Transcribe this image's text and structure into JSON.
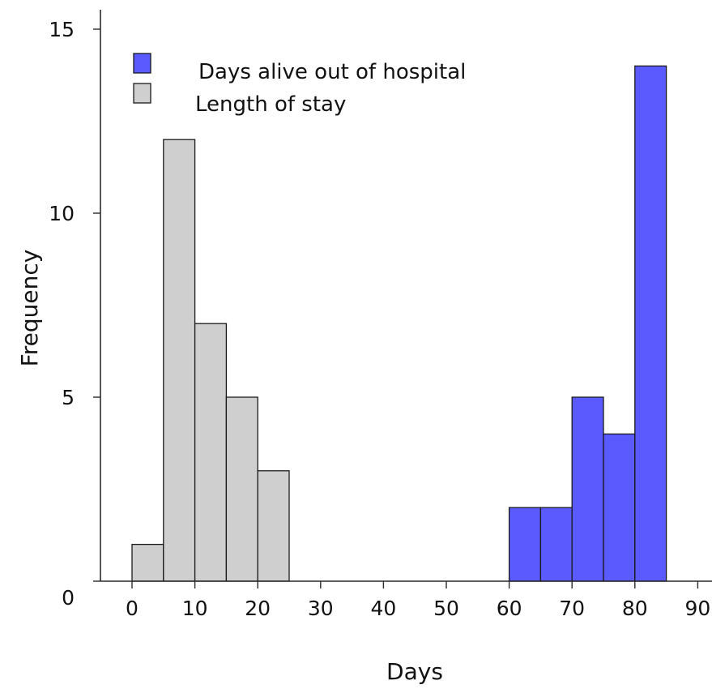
{
  "chart_data": {
    "type": "bar",
    "title": "",
    "xlabel": "Days",
    "ylabel": "Frequency",
    "xlim": [
      0,
      90
    ],
    "ylim": [
      0,
      15
    ],
    "x_ticks": [
      "0",
      "10",
      "20",
      "30",
      "40",
      "50",
      "60",
      "70",
      "80",
      "90"
    ],
    "y_ticks": [
      "0",
      "5",
      "10",
      "15"
    ],
    "grid": false,
    "legend_position": "top-left",
    "series": [
      {
        "name": "Days alive out of hospital",
        "color": "#5a5aff",
        "bins": [
          {
            "x0": 60,
            "x1": 65,
            "count": 2
          },
          {
            "x0": 65,
            "x1": 70,
            "count": 2
          },
          {
            "x0": 70,
            "x1": 75,
            "count": 5
          },
          {
            "x0": 75,
            "x1": 80,
            "count": 4
          },
          {
            "x0": 80,
            "x1": 85,
            "count": 14
          }
        ]
      },
      {
        "name": "Length of stay",
        "color": "#cfcfcf",
        "bins": [
          {
            "x0": 0,
            "x1": 5,
            "count": 1
          },
          {
            "x0": 5,
            "x1": 10,
            "count": 12
          },
          {
            "x0": 10,
            "x1": 15,
            "count": 7
          },
          {
            "x0": 15,
            "x1": 20,
            "count": 5
          },
          {
            "x0": 20,
            "x1": 25,
            "count": 3
          }
        ]
      }
    ]
  }
}
